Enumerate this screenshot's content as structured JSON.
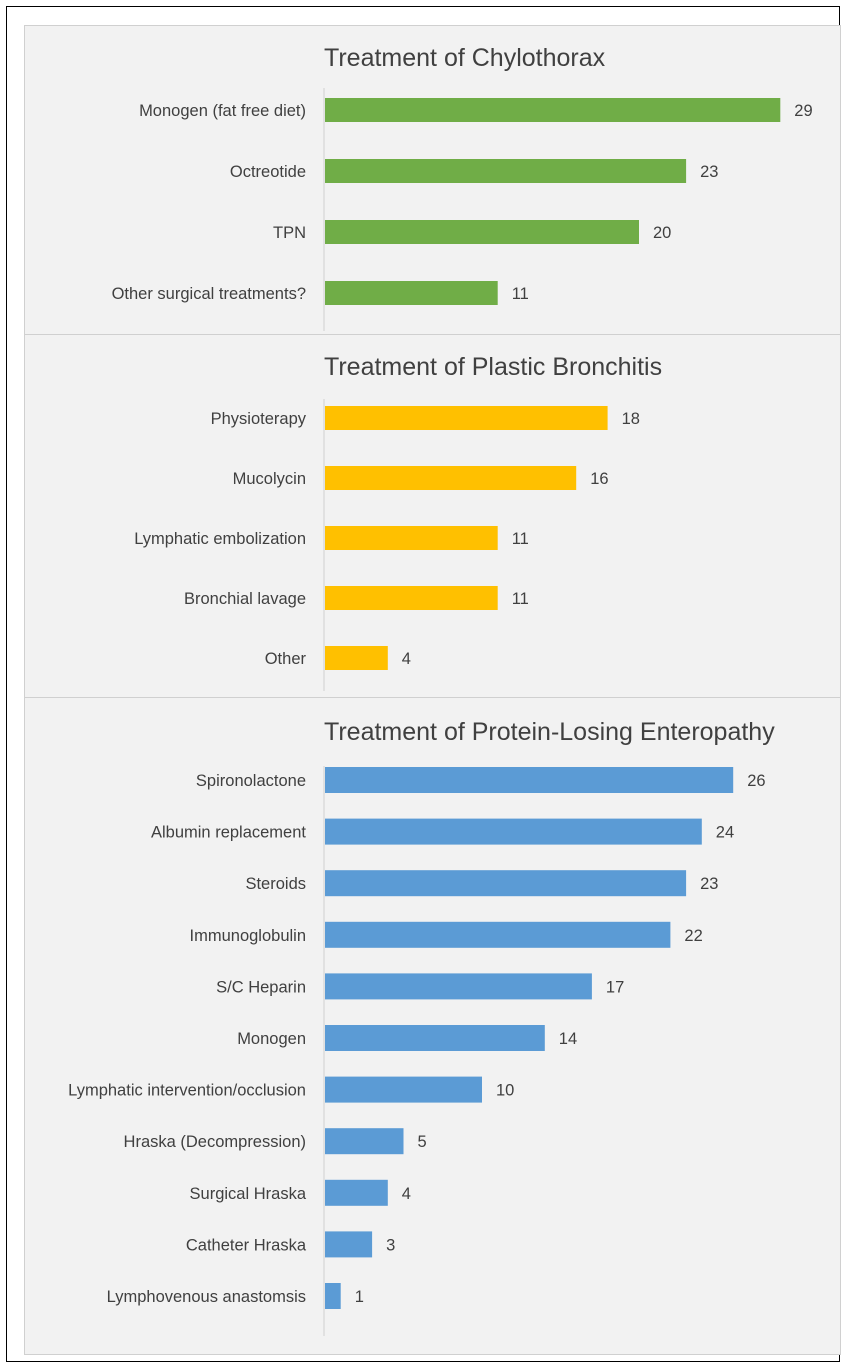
{
  "chart_data": [
    {
      "type": "bar",
      "orientation": "horizontal",
      "title": "Treatment of Chylothorax",
      "categories": [
        "Monogen (fat free diet)",
        "Octreotide",
        "TPN",
        "Other surgical treatments?"
      ],
      "values": [
        29,
        23,
        20,
        11
      ],
      "color": "#70ad47",
      "grid": false,
      "legend": "none"
    },
    {
      "type": "bar",
      "orientation": "horizontal",
      "title": "Treatment of Plastic Bronchitis",
      "categories": [
        "Physioterapy",
        "Mucolycin",
        "Lymphatic embolization",
        "Bronchial lavage",
        "Other"
      ],
      "values": [
        18,
        16,
        11,
        11,
        4
      ],
      "color": "#ffc000",
      "grid": false,
      "legend": "none"
    },
    {
      "type": "bar",
      "orientation": "horizontal",
      "title": "Treatment of Protein-Losing Enteropathy",
      "categories": [
        "Spironolactone",
        "Albumin replacement",
        "Steroids",
        "Immunoglobulin",
        "S/C Heparin",
        "Monogen",
        "Lymphatic intervention/occlusion",
        "Hraska (Decompression)",
        "Surgical Hraska",
        "Catheter Hraska",
        "Lymphovenous anastomsis"
      ],
      "values": [
        26,
        24,
        23,
        22,
        17,
        14,
        10,
        5,
        4,
        3,
        1
      ],
      "color": "#5b9bd5",
      "grid": false,
      "legend": "none"
    }
  ]
}
